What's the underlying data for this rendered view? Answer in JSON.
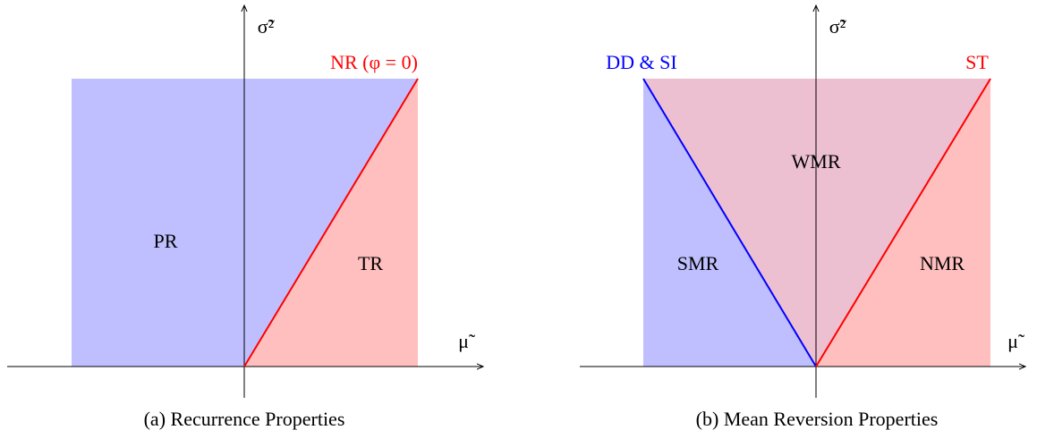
{
  "panels": [
    {
      "caption": "(a) Recurrence Properties",
      "x_axis_label": "μ̃",
      "y_axis_label": "σ̃²",
      "line_labels": [
        "NR (φ = 0)"
      ],
      "regions": [
        "PR",
        "TR"
      ]
    },
    {
      "caption": "(b) Mean Reversion Properties",
      "x_axis_label": "μ̃",
      "y_axis_label": "σ̃²",
      "line_labels": [
        "DD & SI",
        "ST"
      ],
      "regions": [
        "WMR",
        "SMR",
        "NMR"
      ]
    }
  ]
}
